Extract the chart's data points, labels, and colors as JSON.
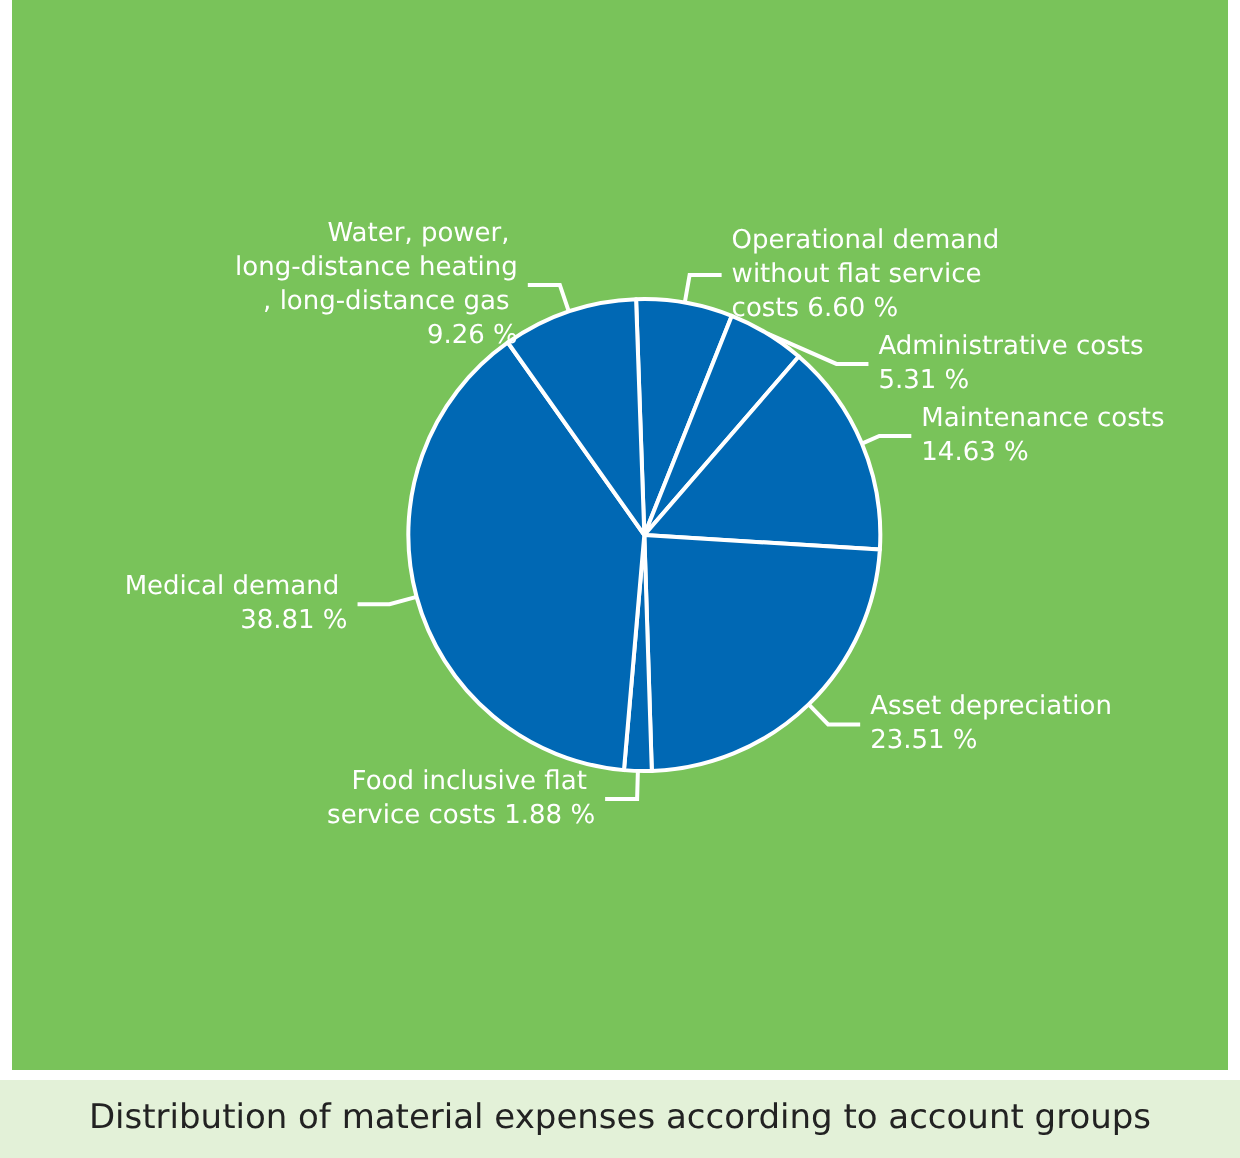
{
  "chart_data": {
    "type": "pie",
    "title": "Distribution of material expenses according to account groups",
    "categories": [
      "Operational demand without flat service costs",
      "Administrative costs",
      "Maintenance costs",
      "Asset depreciation",
      "Food inclusive flat service costs",
      "Medical demand",
      "Water, power, long-distance heating, long-distance gas"
    ],
    "values": [
      6.6,
      5.31,
      14.63,
      23.51,
      1.88,
      38.81,
      9.26
    ],
    "value_labels": [
      "6.60 %",
      "5.31 %",
      "14.63 %",
      "23.51 %",
      "1.88 %",
      "38.81 %",
      "9.26 %"
    ],
    "colors": [
      "#0068b4",
      "#0068b4",
      "#0068b4",
      "#0068b4",
      "#0068b4",
      "#0068b4",
      "#0068b4"
    ]
  }
}
